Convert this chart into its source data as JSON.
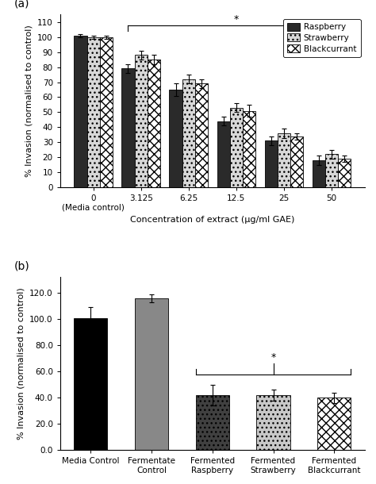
{
  "panel_a": {
    "categories": [
      "0\n(Media control)",
      "3.125",
      "6.25",
      "12.5",
      "25",
      "50"
    ],
    "xlabel": "Concentration of extract (μg/ml GAE)",
    "ylabel": "% Invasion (normalised to control)",
    "ylim": [
      0,
      115
    ],
    "yticks": [
      0,
      10,
      20,
      30,
      40,
      50,
      60,
      70,
      80,
      90,
      100,
      110
    ],
    "raspberry_values": [
      101,
      79,
      65,
      44,
      31,
      18
    ],
    "strawberry_values": [
      100,
      88,
      72,
      53,
      36,
      22
    ],
    "blackcurrant_values": [
      100,
      85,
      69,
      51,
      34,
      19
    ],
    "raspberry_errors": [
      1,
      3,
      4,
      3,
      3,
      3
    ],
    "strawberry_errors": [
      1,
      3,
      3,
      3,
      3,
      3
    ],
    "blackcurrant_errors": [
      1,
      3,
      3,
      4,
      2,
      2
    ],
    "legend_labels": [
      "Raspberry",
      "Strawberry",
      "Blackcurrant"
    ]
  },
  "panel_b": {
    "categories": [
      "Media Control",
      "Fermentate\nControl",
      "Fermented\nRaspberry",
      "Fermented\nStrawberry",
      "Fermented\nBlackcurrant"
    ],
    "ylabel": "% Invasion (normalised to control)",
    "ylim": [
      0,
      132
    ],
    "yticks": [
      0.0,
      20.0,
      40.0,
      60.0,
      80.0,
      100.0,
      120.0
    ],
    "values": [
      101,
      116,
      42,
      42,
      40
    ],
    "errors": [
      8,
      3,
      8,
      4,
      4
    ]
  }
}
